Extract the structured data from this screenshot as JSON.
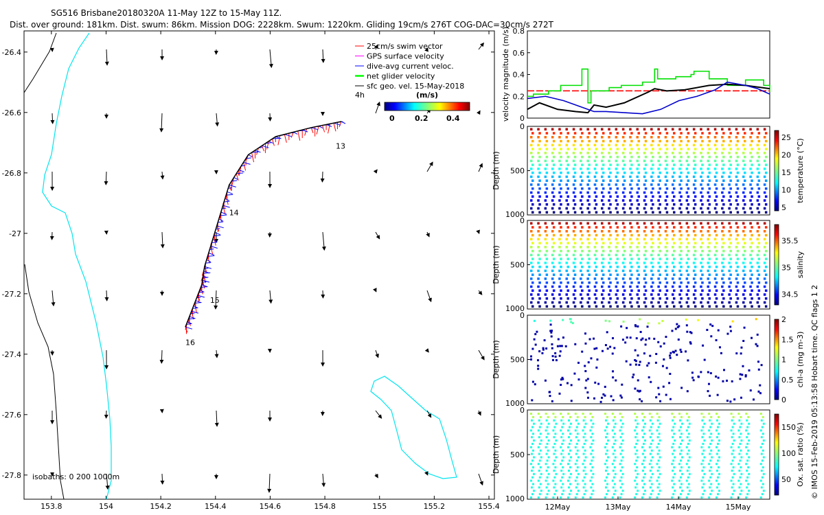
{
  "header": {
    "title": "SG516 Brisbane20180320A 11-May 12Z to 15-May 11Z.",
    "subtitle": "Dist. over ground: 181km. Dist. swum: 86km. Mission DOG: 2228km. Swum: 1220km. Gliding 19cm/s 276T COG-DAC=30cm/s 272T"
  },
  "chart_data": [
    {
      "type": "map",
      "x_ticks": [
        "153.8",
        "154",
        "154.2",
        "154.4",
        "154.6",
        "154.8",
        "155",
        "155.2",
        "155.4"
      ],
      "y_ticks": [
        "-26.4",
        "-26.6",
        "-26.8",
        "-27",
        "-27.2",
        "-27.4",
        "-27.6",
        "-27.8"
      ],
      "xlim": [
        153.7,
        155.42
      ],
      "ylim": [
        -27.88,
        -26.33
      ],
      "legend": {
        "items": [
          {
            "label": "25cm/s swim vector",
            "color": "#ff0000"
          },
          {
            "label": "GPS surface velocity",
            "color": "#ff00ff"
          },
          {
            "label": "dive-avg current veloc.",
            "color": "#0000ff"
          },
          {
            "label": "net glider velocity",
            "color": "#00ff00"
          },
          {
            "label": "sfc geo. vel. 15-May-2018",
            "color": "#000000"
          }
        ],
        "colorbar_label": "(m/s)",
        "colorbar_ticks": [
          "0",
          "0.2",
          "0.4"
        ],
        "side_label": "4h"
      },
      "track_labels": [
        {
          "text": "13",
          "lon": 154.84,
          "lat": -26.72
        },
        {
          "text": "14",
          "lon": 154.45,
          "lat": -26.94
        },
        {
          "text": "15",
          "lon": 154.38,
          "lat": -27.23
        },
        {
          "text": "16",
          "lon": 154.29,
          "lat": -27.37
        }
      ],
      "track": [
        [
          154.86,
          -26.63
        ],
        [
          154.75,
          -26.65
        ],
        [
          154.62,
          -26.68
        ],
        [
          154.52,
          -26.74
        ],
        [
          154.45,
          -26.84
        ],
        [
          154.42,
          -26.93
        ],
        [
          154.39,
          -27.02
        ],
        [
          154.36,
          -27.11
        ],
        [
          154.35,
          -27.17
        ],
        [
          154.32,
          -27.24
        ],
        [
          154.29,
          -27.31
        ]
      ],
      "isobath_label": "isobaths: 0   200  1000m"
    },
    {
      "type": "line",
      "xlim": [
        0,
        4
      ],
      "ylim": [
        0,
        0.8
      ],
      "y_ticks": [
        "0",
        "0.2",
        "0.4",
        "0.6",
        "0.8"
      ],
      "ylabel": "velocity magnitude (m/s)",
      "series": [
        {
          "name": "swim speed threshold",
          "color": "#ff0000",
          "x": [
            0,
            4
          ],
          "y": [
            0.25,
            0.25
          ]
        },
        {
          "name": "net glider velocity",
          "color": "#00e000",
          "x": [
            0,
            0.1,
            0.35,
            0.55,
            0.9,
            1.0,
            1.05,
            1.35,
            1.55,
            1.9,
            2.1,
            2.15,
            2.45,
            2.7,
            2.75,
            3.0,
            3.3,
            3.6,
            3.9,
            4.0
          ],
          "y": [
            0.2,
            0.22,
            0.25,
            0.3,
            0.45,
            0.14,
            0.25,
            0.28,
            0.3,
            0.33,
            0.45,
            0.36,
            0.38,
            0.4,
            0.43,
            0.36,
            0.3,
            0.35,
            0.3,
            0.24
          ]
        },
        {
          "name": "net velocity",
          "color": "#000000",
          "x": [
            0,
            0.2,
            0.5,
            0.8,
            1.0,
            1.1,
            1.3,
            1.6,
            2.0,
            2.1,
            2.3,
            2.6,
            3.0,
            3.3,
            3.6,
            4.0
          ],
          "y": [
            0.08,
            0.14,
            0.08,
            0.06,
            0.05,
            0.12,
            0.1,
            0.14,
            0.24,
            0.27,
            0.25,
            0.26,
            0.3,
            0.31,
            0.3,
            0.27
          ]
        },
        {
          "name": "dive-avg current veloc.",
          "color": "#0000cc",
          "x": [
            0,
            0.3,
            0.6,
            0.9,
            1.1,
            1.3,
            1.6,
            1.9,
            2.2,
            2.5,
            2.8,
            3.1,
            3.3,
            3.6,
            3.8,
            4.0
          ],
          "y": [
            0.18,
            0.2,
            0.16,
            0.1,
            0.06,
            0.06,
            0.05,
            0.04,
            0.08,
            0.16,
            0.2,
            0.26,
            0.33,
            0.3,
            0.27,
            0.22
          ]
        }
      ]
    },
    {
      "type": "scatter",
      "ylabel": "Depth (m)",
      "y_ticks": [
        "0",
        "500",
        "1000"
      ],
      "colorbar_label": "temperature (°C)",
      "colorbar_ticks": [
        "5",
        "10",
        "15",
        "20",
        "25"
      ],
      "clim": [
        4,
        27
      ]
    },
    {
      "type": "scatter",
      "ylabel": "Depth (m)",
      "y_ticks": [
        "0",
        "500",
        "1000"
      ],
      "colorbar_label": "salinity",
      "colorbar_ticks": [
        "34.5",
        "35",
        "35.5"
      ],
      "clim": [
        34.3,
        35.8
      ]
    },
    {
      "type": "scatter",
      "ylabel": "Depth (m)",
      "y_ticks": [
        "0",
        "500",
        "1000"
      ],
      "colorbar_label": "chl-a (mg m-3)",
      "colorbar_ticks": [
        "0",
        "0.5",
        "1",
        "1.5",
        "2"
      ],
      "clim": [
        0,
        2
      ]
    },
    {
      "type": "scatter",
      "ylabel": "Depth (m)",
      "y_ticks": [
        "0",
        "500",
        "1000"
      ],
      "colorbar_label": "Ox. sat. ratio (%)",
      "colorbar_ticks": [
        "50",
        "100",
        "150"
      ],
      "clim": [
        20,
        175
      ],
      "x_ticks": [
        "12May",
        "13May",
        "14May",
        "15May"
      ]
    }
  ],
  "footer": {
    "credit": "© IMOS 15-Feb-2019 05:13:58 Hobart time. QC flags 1  2"
  }
}
